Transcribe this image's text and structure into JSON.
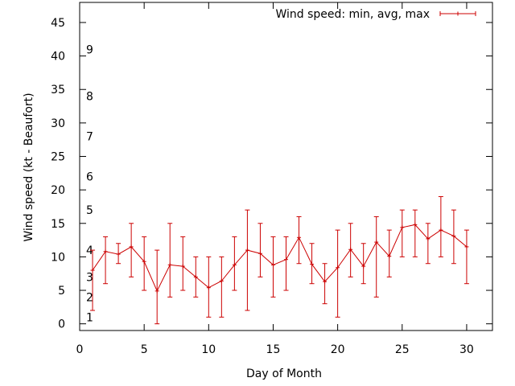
{
  "chart_data": {
    "type": "line",
    "title": "",
    "xlabel": "Day of Month",
    "ylabel": "Wind speed (kt - Beaufort)",
    "xlim": [
      0,
      32
    ],
    "ylim": [
      -1,
      48
    ],
    "x_ticks": [
      0,
      5,
      10,
      15,
      20,
      25,
      30
    ],
    "y_ticks": [
      0,
      5,
      10,
      15,
      20,
      25,
      30,
      35,
      40,
      45
    ],
    "grid": false,
    "legend_position": "top-right",
    "series": [
      {
        "name": "Wind speed: min, avg, max",
        "color": "#cc0000",
        "style": "line+errorbars",
        "x": [
          1,
          2,
          3,
          4,
          5,
          6,
          7,
          8,
          9,
          10,
          11,
          12,
          13,
          14,
          15,
          16,
          17,
          18,
          19,
          20,
          21,
          22,
          23,
          24,
          25,
          26,
          27,
          28,
          29,
          30
        ],
        "avg": [
          8,
          10.8,
          10.4,
          11.5,
          9.3,
          4.9,
          8.8,
          8.6,
          7,
          5.4,
          6.4,
          8.8,
          11,
          10.5,
          8.8,
          9.6,
          12.9,
          8.9,
          6.3,
          8.4,
          11.1,
          8.6,
          12.2,
          10.1,
          14.4,
          14.8,
          12.7,
          14,
          13.1,
          11.5
        ],
        "min": [
          2,
          6,
          9,
          7,
          5,
          0,
          4,
          5,
          4,
          1,
          1,
          5,
          2,
          7,
          4,
          5,
          9,
          6,
          3,
          1,
          7,
          6,
          4,
          7,
          10,
          10,
          9,
          10,
          9,
          6
        ],
        "max": [
          11,
          13,
          12,
          15,
          13,
          11,
          15,
          13,
          10,
          10,
          10,
          13,
          17,
          15,
          13,
          13,
          16,
          12,
          9,
          14,
          15,
          12,
          16,
          14,
          17,
          17,
          15,
          19,
          17,
          14
        ]
      }
    ],
    "beaufort_labels": [
      {
        "label": "1",
        "kt": 1
      },
      {
        "label": "2",
        "kt": 4
      },
      {
        "label": "3",
        "kt": 7
      },
      {
        "label": "4",
        "kt": 11
      },
      {
        "label": "5",
        "kt": 17
      },
      {
        "label": "6",
        "kt": 22
      },
      {
        "label": "7",
        "kt": 28
      },
      {
        "label": "8",
        "kt": 34
      },
      {
        "label": "9",
        "kt": 41
      }
    ]
  }
}
